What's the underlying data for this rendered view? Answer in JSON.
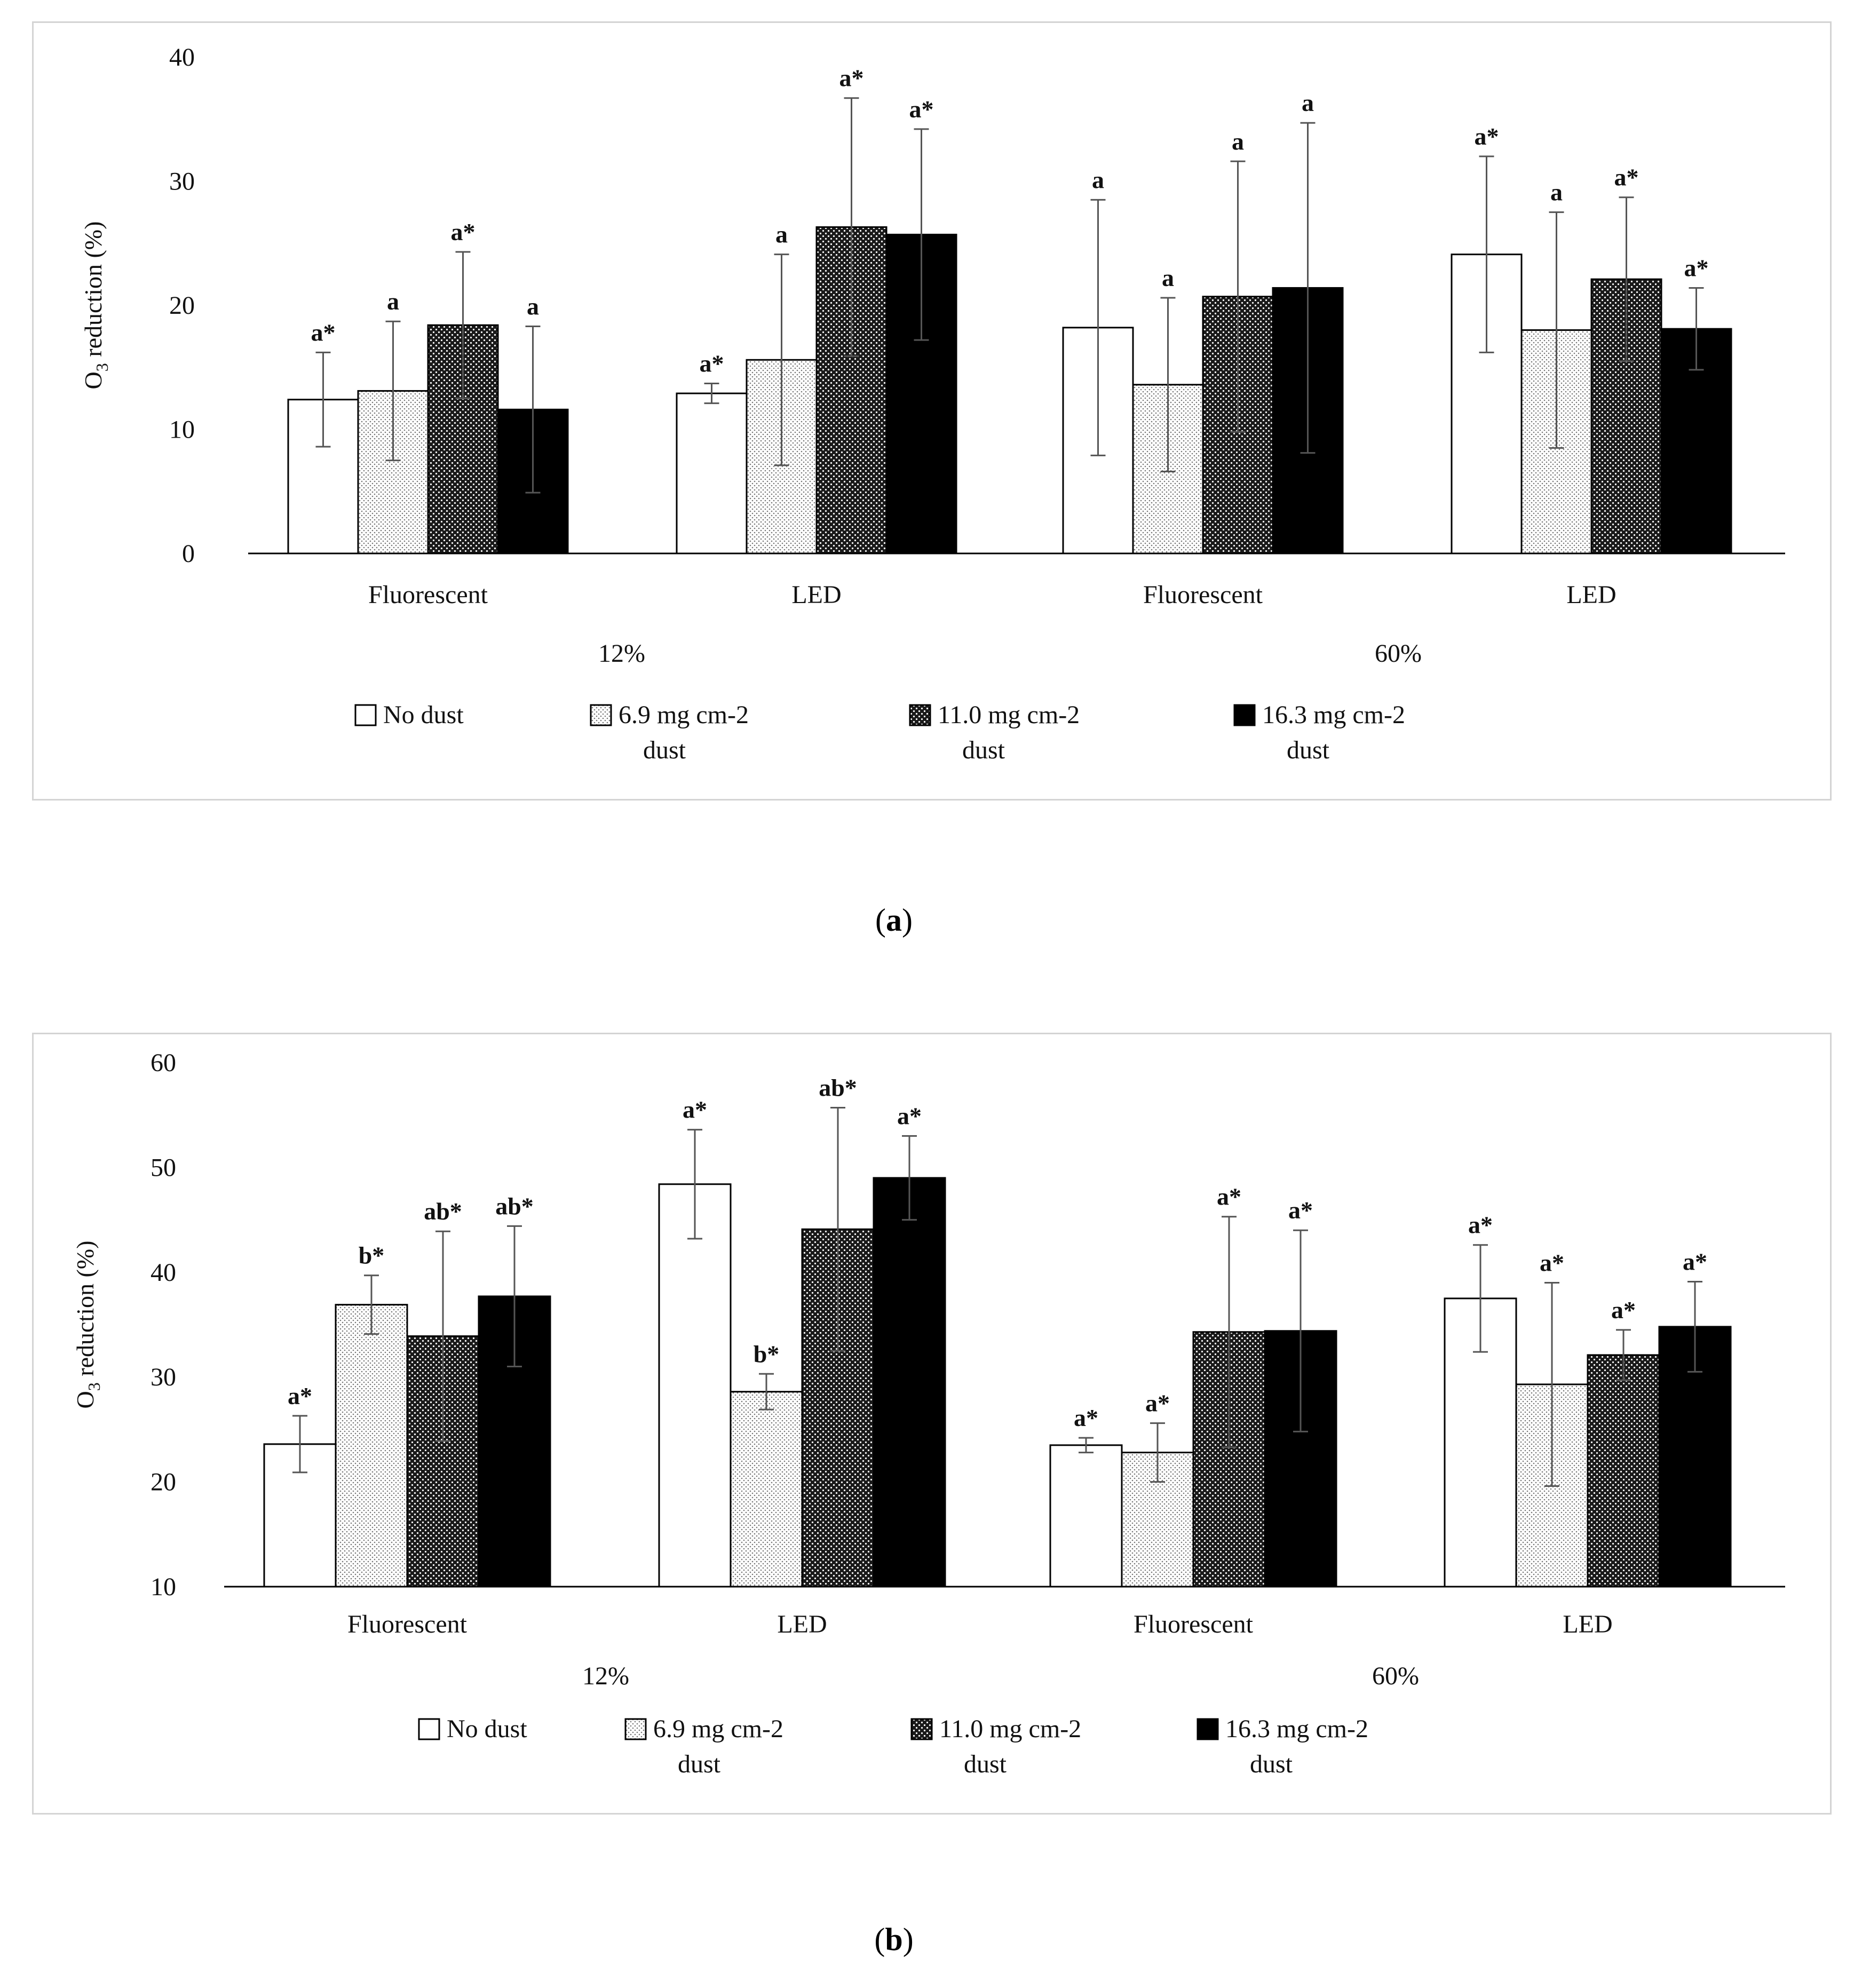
{
  "chart_data": [
    {
      "panel": "a",
      "type": "bar",
      "caption": "a",
      "ylabel": "O3 reduction (%)",
      "ylim": [
        0,
        40
      ],
      "yticks": [
        0,
        10,
        20,
        30,
        40
      ],
      "groups": [
        {
          "label": "Fluorescent",
          "condition": "12%"
        },
        {
          "label": "LED",
          "condition": "12%"
        },
        {
          "label": "Fluorescent",
          "condition": "60%"
        },
        {
          "label": "LED",
          "condition": "60%"
        }
      ],
      "condition_labels": [
        "12%",
        "60%"
      ],
      "legend": [
        "No dust",
        "6.9 mg cm-2 dust",
        "11.0 mg cm-2 dust",
        "16.3 mg cm-2 dust"
      ],
      "series": [
        {
          "name": "No dust",
          "pattern": "white",
          "values": [
            12.4,
            12.9,
            18.2,
            24.1
          ],
          "errors": [
            3.8,
            0.8,
            10.3,
            7.9
          ],
          "annotations": [
            "a*",
            "a*",
            "a",
            "a*"
          ]
        },
        {
          "name": "6.9 mg cm-2 dust",
          "pattern": "light",
          "values": [
            13.1,
            15.6,
            13.6,
            18.0
          ],
          "errors": [
            5.6,
            8.5,
            7.0,
            9.5
          ],
          "annotations": [
            "a",
            "a",
            "a",
            "a"
          ]
        },
        {
          "name": "11.0 mg cm-2 dust",
          "pattern": "dark",
          "values": [
            18.4,
            26.3,
            20.7,
            22.1
          ],
          "errors": [
            5.9,
            10.4,
            10.9,
            6.6
          ],
          "annotations": [
            "a*",
            "a*",
            "a",
            "a*"
          ]
        },
        {
          "name": "16.3 mg cm-2 dust",
          "pattern": "black",
          "values": [
            11.6,
            25.7,
            21.4,
            18.1
          ],
          "errors": [
            6.7,
            8.5,
            13.3,
            3.3
          ],
          "annotations": [
            "a",
            "a*",
            "a",
            "a*"
          ]
        }
      ]
    },
    {
      "panel": "b",
      "type": "bar",
      "caption": "b",
      "ylabel": "O3 reduction (%)",
      "ylim": [
        10,
        60
      ],
      "yticks": [
        10,
        20,
        30,
        40,
        50,
        60
      ],
      "groups": [
        {
          "label": "Fluorescent",
          "condition": "12%"
        },
        {
          "label": "LED",
          "condition": "12%"
        },
        {
          "label": "Fluorescent",
          "condition": "60%"
        },
        {
          "label": "LED",
          "condition": "60%"
        }
      ],
      "condition_labels": [
        "12%",
        "60%"
      ],
      "legend": [
        "No dust",
        "6.9 mg cm-2 dust",
        "11.0 mg cm-2 dust",
        "16.3 mg cm-2 dust"
      ],
      "series": [
        {
          "name": "No dust",
          "pattern": "white",
          "values": [
            23.6,
            48.4,
            23.5,
            37.5
          ],
          "errors": [
            2.7,
            5.2,
            0.7,
            5.1
          ],
          "annotations": [
            "a*",
            "a*",
            "a*",
            "a*"
          ]
        },
        {
          "name": "6.9 mg cm-2 dust",
          "pattern": "light",
          "values": [
            36.9,
            28.6,
            22.8,
            29.3
          ],
          "errors": [
            2.8,
            1.7,
            2.8,
            9.7
          ],
          "annotations": [
            "b*",
            "b*",
            "a*",
            "a*"
          ]
        },
        {
          "name": "11.0 mg cm-2 dust",
          "pattern": "dark",
          "values": [
            33.9,
            44.1,
            34.3,
            32.1
          ],
          "errors": [
            10.0,
            11.6,
            11.0,
            2.4
          ],
          "annotations": [
            "ab*",
            "ab*",
            "a*",
            "a*"
          ]
        },
        {
          "name": "16.3 mg cm-2 dust",
          "pattern": "black",
          "values": [
            37.7,
            49.0,
            34.4,
            34.8
          ],
          "errors": [
            6.7,
            4.0,
            9.6,
            4.3
          ],
          "annotations": [
            "ab*",
            "a*",
            "a*",
            "a*"
          ]
        }
      ]
    }
  ]
}
